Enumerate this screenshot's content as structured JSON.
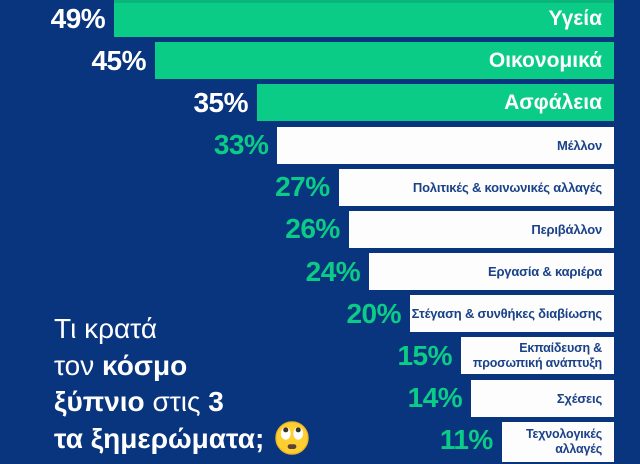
{
  "colors": {
    "background": "#09357F",
    "bar_green": "#0ACC86",
    "bar_white": "#FCFDFC",
    "label_navy": "#1A4189",
    "percent_on_green_rows": "#FFFFFF",
    "percent_on_white_rows": "#0ACC86",
    "question_text": "#FFFFFF",
    "emoji_yellow": "#FFCE31"
  },
  "chart_data": {
    "type": "bar",
    "orientation": "horizontal",
    "title": "Τι κρατά τον κόσμο ξύπνιο στις 3 τα ξημερώματα;",
    "unit": "%",
    "xlim": [
      0,
      49
    ],
    "grid": false,
    "legend": false,
    "bars_right_aligned": true,
    "highlight_note": "top 3 bars green, remaining bars white",
    "categories": [
      "Υγεία",
      "Οικονομικά",
      "Ασφάλεια",
      "Μέλλον",
      "Πολιτικές & κοινωνικές αλλαγές",
      "Περιβάλλον",
      "Εργασία & καριέρα",
      "Στέγαση & συνθήκες διαβίωσης",
      "Εκπαίδευση & προσωπική ανάπτυξη",
      "Σχέσεις",
      "Τεχνολογικές αλλαγές"
    ],
    "values": [
      49,
      45,
      35,
      33,
      27,
      26,
      24,
      20,
      15,
      14,
      11
    ],
    "rows": [
      {
        "pct": "49%",
        "value": 49,
        "label_lines": [
          "Υγεία"
        ],
        "highlight": true
      },
      {
        "pct": "45%",
        "value": 45,
        "label_lines": [
          "Οικονομικά"
        ],
        "highlight": true
      },
      {
        "pct": "35%",
        "value": 35,
        "label_lines": [
          "Ασφάλεια"
        ],
        "highlight": true
      },
      {
        "pct": "33%",
        "value": 33,
        "label_lines": [
          "Μέλλον"
        ],
        "highlight": false
      },
      {
        "pct": "27%",
        "value": 27,
        "label_lines": [
          "Πολιτικές & κοινωνικές αλλαγές"
        ],
        "highlight": false
      },
      {
        "pct": "26%",
        "value": 26,
        "label_lines": [
          "Περιβάλλον"
        ],
        "highlight": false
      },
      {
        "pct": "24%",
        "value": 24,
        "label_lines": [
          "Εργασία & καριέρα"
        ],
        "highlight": false
      },
      {
        "pct": "20%",
        "value": 20,
        "label_lines": [
          "Στέγαση & συνθήκες διαβίωσης"
        ],
        "highlight": false
      },
      {
        "pct": "15%",
        "value": 15,
        "label_lines": [
          "Εκπαίδευση &",
          "προσωπική ανάπτυξη"
        ],
        "highlight": false
      },
      {
        "pct": "14%",
        "value": 14,
        "label_lines": [
          "Σχέσεις"
        ],
        "highlight": false
      },
      {
        "pct": "11%",
        "value": 11,
        "label_lines": [
          "Τεχνολογικές",
          "αλλαγές"
        ],
        "highlight": false
      }
    ]
  },
  "question": {
    "full_text": "Τι κρατά τον κόσμο ξύπνιο στις 3 τα ξημερώματα;",
    "emoji": "rolling-eyes-emoji",
    "lines": [
      [
        {
          "text": "Τι κρατά",
          "bold": false
        }
      ],
      [
        {
          "text": "τον ",
          "bold": false
        },
        {
          "text": "κόσμο",
          "bold": true
        }
      ],
      [
        {
          "text": "ξύπνιο",
          "bold": true
        },
        {
          "text": " στις ",
          "bold": false
        },
        {
          "text": "3",
          "bold": true
        }
      ],
      [
        {
          "text": "τα ξημερώματα;",
          "bold": true
        },
        {
          "icon": "rolling-eyes-emoji"
        }
      ]
    ]
  }
}
